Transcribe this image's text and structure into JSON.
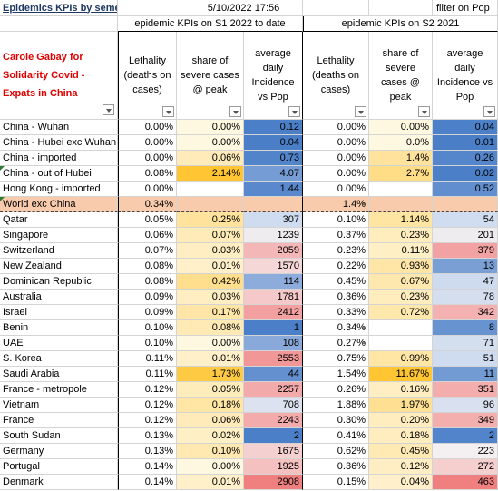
{
  "sheet": {
    "title": "Epidemics KPIs by semester",
    "timestamp": "5/10/2022 17:56",
    "filter_note": "filter on Pop",
    "group_s1": "epidemic KPIs on S1 2022 to date",
    "group_s2": "epidemic KPIs on S2 2021",
    "author": "Carole Gabay for Solidarity Covid - Expats in China",
    "columns": {
      "lethality": "Lethality (deaths on cases)",
      "severe": "share of severe cases @ peak",
      "incidence": "average daily Incidence vs Pop"
    },
    "colors": {
      "blue_strong": "#5b8fd2",
      "red_strong": "#f08a8a",
      "yellow_strong": "#ffc533",
      "band": "#f8cbad"
    }
  },
  "rows": [
    {
      "name": "China - Wuhan",
      "l1": "0.00%",
      "s1": "0.00%",
      "i1": "0.12",
      "l2": "0.00%",
      "s2": "0.00%",
      "i2": "0.04"
    },
    {
      "name": "China - Hubei exc Wuhan",
      "l1": "0.00%",
      "s1": "0.00%",
      "i1": "0.04",
      "l2": "0.00%",
      "s2": "0.0%",
      "i2": "0.01"
    },
    {
      "name": "China - imported",
      "l1": "0.00%",
      "s1": "0.06%",
      "i1": "0.73",
      "l2": "0.00%",
      "s2": "1.4%",
      "i2": "0.26"
    },
    {
      "name": "China - out of Hubei",
      "l1": "0.08%",
      "s1": "2.14%",
      "i1": "4.07",
      "l2": "0.00%",
      "s2": "2.7%",
      "i2": "0.02"
    },
    {
      "name": "Hong Kong - imported",
      "l1": "0.00%",
      "s1": "",
      "i1": "1.44",
      "l2": "0.00%",
      "s2": "",
      "i2": "0.52"
    },
    {
      "name": "World exc China",
      "l1": "0.34%",
      "s1": "",
      "i1": "",
      "l2": "1.4%",
      "s2": "-",
      "i2": ""
    },
    {
      "name": "Qatar",
      "l1": "0.05%",
      "s1": "0.25%",
      "i1": "307",
      "l2": "0.10%",
      "s2": "1.14%",
      "i2": "54"
    },
    {
      "name": "Singapore",
      "l1": "0.06%",
      "s1": "0.07%",
      "i1": "1239",
      "l2": "0.37%",
      "s2": "0.23%",
      "i2": "201"
    },
    {
      "name": "Switzerland",
      "l1": "0.07%",
      "s1": "0.03%",
      "i1": "2059",
      "l2": "0.23%",
      "s2": "0.11%",
      "i2": "379"
    },
    {
      "name": "New Zealand",
      "l1": "0.08%",
      "s1": "0.01%",
      "i1": "1570",
      "l2": "0.22%",
      "s2": "0.93%",
      "i2": "13"
    },
    {
      "name": "Dominican Republic",
      "l1": "0.08%",
      "s1": "0.42%",
      "i1": "114",
      "l2": "0.45%",
      "s2": "0.67%",
      "i2": "47"
    },
    {
      "name": "Australia",
      "l1": "0.09%",
      "s1": "0.03%",
      "i1": "1781",
      "l2": "0.36%",
      "s2": "0.23%",
      "i2": "78"
    },
    {
      "name": "Israel",
      "l1": "0.09%",
      "s1": "0.17%",
      "i1": "2412",
      "l2": "0.33%",
      "s2": "0.72%",
      "i2": "342"
    },
    {
      "name": "Benin",
      "l1": "0.10%",
      "s1": "0.08%",
      "i1": "1",
      "l2": "0.34%",
      "s2": "-",
      "i2": "8"
    },
    {
      "name": "UAE",
      "l1": "0.10%",
      "s1": "0.00%",
      "i1": "108",
      "l2": "0.27%",
      "s2": "-",
      "i2": "71"
    },
    {
      "name": "S. Korea",
      "l1": "0.11%",
      "s1": "0.01%",
      "i1": "2553",
      "l2": "0.75%",
      "s2": "0.99%",
      "i2": "51"
    },
    {
      "name": "Saudi Arabia",
      "l1": "0.11%",
      "s1": "1.73%",
      "i1": "44",
      "l2": "1.54%",
      "s2": "11.67%",
      "i2": "11"
    },
    {
      "name": "France - metropole",
      "l1": "0.12%",
      "s1": "0.05%",
      "i1": "2257",
      "l2": "0.26%",
      "s2": "0.16%",
      "i2": "351"
    },
    {
      "name": "Vietnam",
      "l1": "0.12%",
      "s1": "0.18%",
      "i1": "708",
      "l2": "1.88%",
      "s2": "1.97%",
      "i2": "96"
    },
    {
      "name": "France",
      "l1": "0.12%",
      "s1": "0.06%",
      "i1": "2243",
      "l2": "0.30%",
      "s2": "0.20%",
      "i2": "349"
    },
    {
      "name": "South Sudan",
      "l1": "0.13%",
      "s1": "0.02%",
      "i1": "2",
      "l2": "0.41%",
      "s2": "0.18%",
      "i2": "2"
    },
    {
      "name": "Germany",
      "l1": "0.13%",
      "s1": "0.10%",
      "i1": "1675",
      "l2": "0.62%",
      "s2": "0.45%",
      "i2": "223"
    },
    {
      "name": "Portugal",
      "l1": "0.14%",
      "s1": "0.00%",
      "i1": "1925",
      "l2": "0.36%",
      "s2": "0.12%",
      "i2": "272"
    },
    {
      "name": "Denmark",
      "l1": "0.14%",
      "s1": "0.01%",
      "i1": "2908",
      "l2": "0.15%",
      "s2": "0.04%",
      "i2": "463"
    }
  ]
}
